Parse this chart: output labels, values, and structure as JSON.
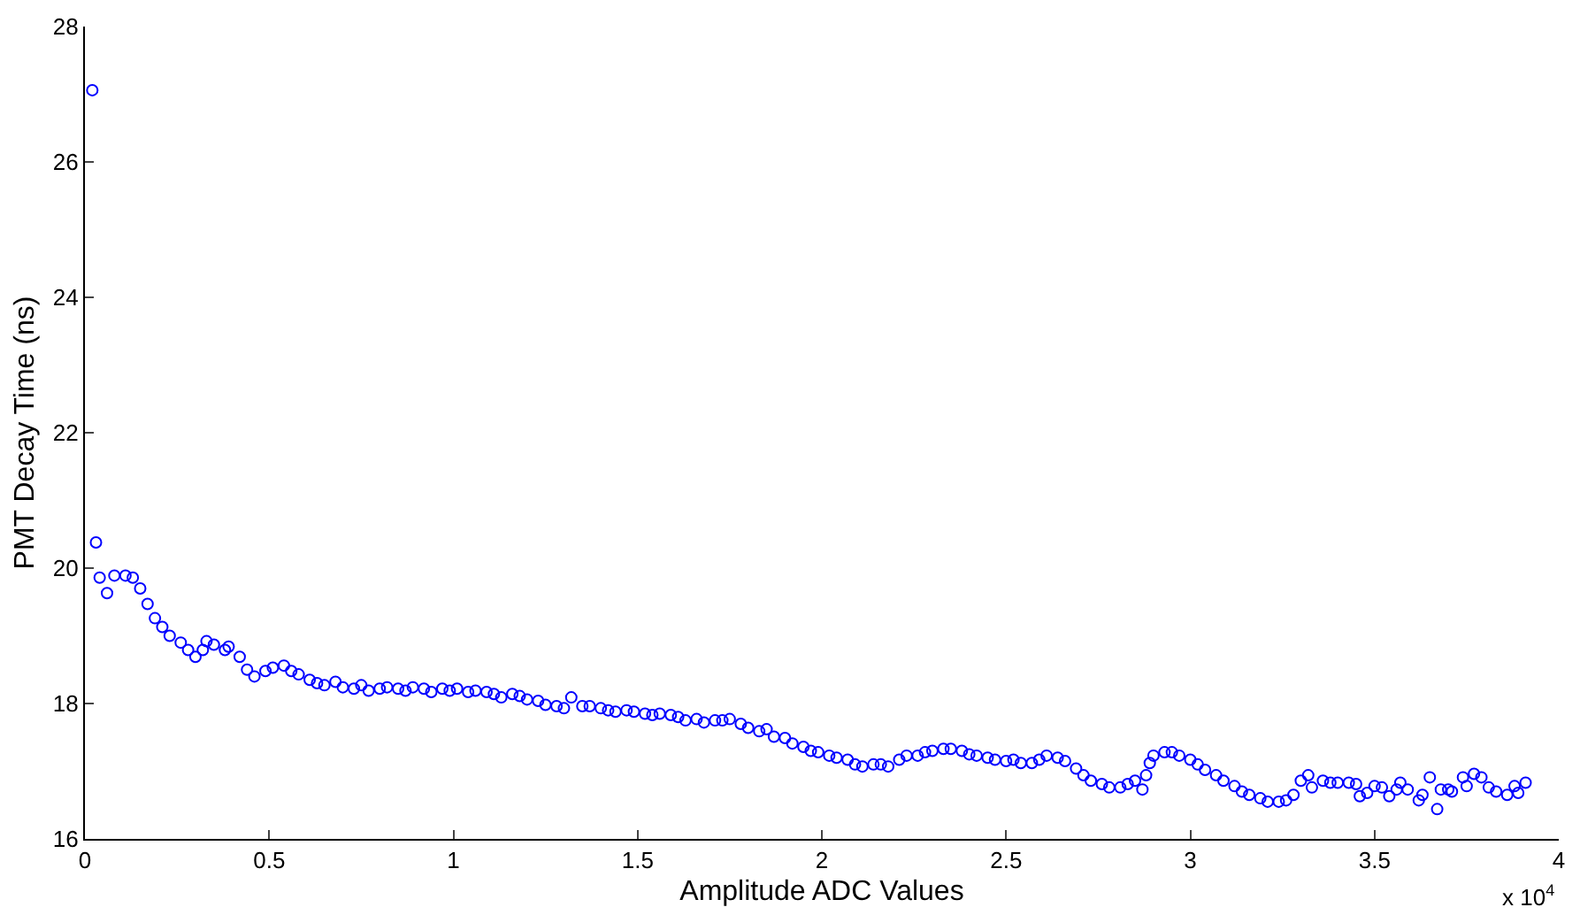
{
  "chart_data": {
    "type": "scatter",
    "xlabel": "Amplitude ADC Values",
    "ylabel": "PMT Decay Time (ns)",
    "marker": "circle",
    "xlim": [
      0,
      4
    ],
    "xticks": [
      0,
      0.5,
      1,
      1.5,
      2,
      2.5,
      3,
      3.5,
      4
    ],
    "ylim": [
      16,
      28
    ],
    "yticks": [
      16,
      18,
      20,
      22,
      24,
      26,
      28
    ],
    "annotations": [
      "x 10$^{4}$"
    ],
    "series": [
      {
        "color": "#0000ff",
        "x": [
          0.02,
          0.03,
          0.04,
          0.06,
          0.08,
          0.11,
          0.13,
          0.15,
          0.17,
          0.19,
          0.21,
          0.23,
          0.26,
          0.28,
          0.3,
          0.32,
          0.33,
          0.35,
          0.38,
          0.39,
          0.42,
          0.44,
          0.46,
          0.49,
          0.51,
          0.54,
          0.56,
          0.58,
          0.61,
          0.63,
          0.65,
          0.68,
          0.7,
          0.73,
          0.75,
          0.77,
          0.8,
          0.82,
          0.85,
          0.87,
          0.89,
          0.92,
          0.94,
          0.97,
          0.99,
          1.01,
          1.04,
          1.06,
          1.09,
          1.11,
          1.13,
          1.16,
          1.18,
          1.2,
          1.23,
          1.25,
          1.28,
          1.3,
          1.32,
          1.35,
          1.37,
          1.4,
          1.42,
          1.44,
          1.47,
          1.49,
          1.52,
          1.54,
          1.56,
          1.59,
          1.61,
          1.63,
          1.66,
          1.68,
          1.71,
          1.73,
          1.75,
          1.78,
          1.8,
          1.83,
          1.85,
          1.87,
          1.9,
          1.92,
          1.95,
          1.97,
          1.99,
          2.02,
          2.04,
          2.07,
          2.09,
          2.11,
          2.14,
          2.16,
          2.18,
          2.21,
          2.23,
          2.26,
          2.28,
          2.3,
          2.33,
          2.35,
          2.38,
          2.4,
          2.42,
          2.45,
          2.47,
          2.5,
          2.52,
          2.54,
          2.57,
          2.59,
          2.61,
          2.64,
          2.66,
          2.69,
          2.71,
          2.73,
          2.76,
          2.78,
          2.81,
          2.83,
          2.85,
          2.87,
          2.88,
          2.89,
          2.9,
          2.93,
          2.95,
          2.97,
          3,
          3.02,
          3.04,
          3.07,
          3.09,
          3.12,
          3.14,
          3.16,
          3.19,
          3.21,
          3.24,
          3.26,
          3.28,
          3.3,
          3.32,
          3.33,
          3.36,
          3.38,
          3.4,
          3.43,
          3.45,
          3.46,
          3.48,
          3.5,
          3.52,
          3.54,
          3.56,
          3.57,
          3.59,
          3.62,
          3.63,
          3.65,
          3.67,
          3.68,
          3.7,
          3.71,
          3.74,
          3.75,
          3.77,
          3.79,
          3.81,
          3.83,
          3.86,
          3.88,
          3.89,
          3.91
        ],
        "values": [
          27.06,
          20.38,
          19.86,
          19.63,
          19.89,
          19.89,
          19.86,
          19.7,
          19.47,
          19.26,
          19.13,
          19.0,
          18.9,
          18.79,
          18.69,
          18.79,
          18.92,
          18.87,
          18.79,
          18.84,
          18.69,
          18.5,
          18.4,
          18.48,
          18.53,
          18.56,
          18.48,
          18.43,
          18.35,
          18.3,
          18.27,
          18.32,
          18.24,
          18.22,
          18.27,
          18.19,
          18.22,
          18.24,
          18.22,
          18.19,
          18.24,
          18.22,
          18.17,
          18.22,
          18.19,
          18.22,
          18.17,
          18.19,
          18.17,
          18.14,
          18.09,
          18.14,
          18.11,
          18.06,
          18.04,
          17.98,
          17.96,
          17.93,
          18.09,
          17.96,
          17.96,
          17.93,
          17.9,
          17.88,
          17.9,
          17.88,
          17.85,
          17.83,
          17.85,
          17.83,
          17.8,
          17.75,
          17.77,
          17.72,
          17.75,
          17.75,
          17.77,
          17.7,
          17.64,
          17.59,
          17.62,
          17.51,
          17.49,
          17.41,
          17.36,
          17.3,
          17.28,
          17.23,
          17.2,
          17.17,
          17.1,
          17.07,
          17.1,
          17.1,
          17.07,
          17.17,
          17.23,
          17.23,
          17.28,
          17.3,
          17.33,
          17.33,
          17.3,
          17.25,
          17.23,
          17.2,
          17.17,
          17.15,
          17.17,
          17.12,
          17.12,
          17.17,
          17.23,
          17.2,
          17.15,
          17.04,
          16.94,
          16.86,
          16.81,
          16.76,
          16.76,
          16.81,
          16.86,
          16.73,
          16.94,
          17.12,
          17.23,
          17.28,
          17.28,
          17.23,
          17.17,
          17.1,
          17.02,
          16.94,
          16.86,
          16.78,
          16.7,
          16.65,
          16.6,
          16.55,
          16.55,
          16.57,
          16.65,
          16.86,
          16.94,
          16.76,
          16.86,
          16.83,
          16.83,
          16.83,
          16.81,
          16.63,
          16.68,
          16.78,
          16.76,
          16.63,
          16.73,
          16.83,
          16.73,
          16.57,
          16.65,
          16.91,
          16.44,
          16.73,
          16.73,
          16.7,
          16.91,
          16.78,
          16.96,
          16.91,
          16.76,
          16.7,
          16.65,
          16.78,
          16.68,
          16.83
        ]
      }
    ]
  }
}
